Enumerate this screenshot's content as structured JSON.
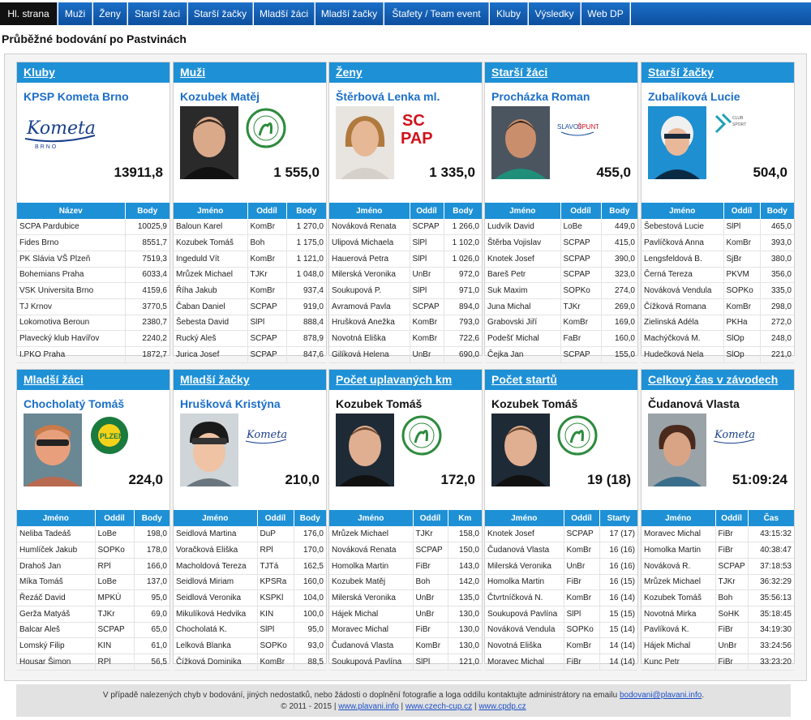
{
  "nav": {
    "items": [
      "Hl. strana",
      "Muži",
      "Ženy",
      "Starší žáci",
      "Starší žačky",
      "Mladší žáci",
      "Mladší žačky",
      "Štafety / Team event",
      "Kluby",
      "Výsledky",
      "Web DP"
    ]
  },
  "page_title": "Průběžné bodování po Pastvinách",
  "cards": [
    {
      "header": "Kluby",
      "name": "KPSP Kometa Brno",
      "score": "13911,8",
      "logo": "kometa-logo",
      "photo": "none",
      "columns": [
        "Název",
        "Body"
      ],
      "rows": [
        [
          "SCPA Pardubice",
          "10025,9"
        ],
        [
          "Fides Brno",
          "8551,7"
        ],
        [
          "PK Slávia VŠ Plzeň",
          "7519,3"
        ],
        [
          "Bohemians Praha",
          "6033,4"
        ],
        [
          "VSK Universita Brno",
          "4159,6"
        ],
        [
          "TJ Krnov",
          "3770,5"
        ],
        [
          "Lokomotiva Beroun",
          "2380,7"
        ],
        [
          "Plavecký klub Havířov",
          "2240,2"
        ],
        [
          "I.PKO Praha",
          "1872,7"
        ]
      ]
    },
    {
      "header": "Muži",
      "name": "Kozubek Matěj",
      "score": "1 555,0",
      "logo": "bohemians-logo",
      "columns": [
        "Jméno",
        "Oddíl",
        "Body"
      ],
      "rows": [
        [
          "Baloun Karel",
          "KomBr",
          "1 270,0"
        ],
        [
          "Kozubek Tomáš",
          "Boh",
          "1 175,0"
        ],
        [
          "Ingeduld Vít",
          "KomBr",
          "1 121,0"
        ],
        [
          "Mrůzek Michael",
          "TJKr",
          "1 048,0"
        ],
        [
          "Říha Jakub",
          "KomBr",
          "937,4"
        ],
        [
          "Čaban Daniel",
          "SCPAP",
          "919,0"
        ],
        [
          "Šebesta David",
          "SlPl",
          "888,4"
        ],
        [
          "Rucký Aleš",
          "SCPAP",
          "878,9"
        ],
        [
          "Jurica Josef",
          "SCPAP",
          "847,6"
        ]
      ]
    },
    {
      "header": "Ženy",
      "name": "Štěrbová Lenka ml.",
      "score": "1 335,0",
      "logo": "scpap-logo",
      "columns": [
        "Jméno",
        "Oddíl",
        "Body"
      ],
      "rows": [
        [
          "Nováková Renata",
          "SCPAP",
          "1 266,0"
        ],
        [
          "Ulipová Michaela",
          "SlPl",
          "1 102,0"
        ],
        [
          "Hauerová Petra",
          "SlPl",
          "1 026,0"
        ],
        [
          "Milerská Veronika",
          "UnBr",
          "972,0"
        ],
        [
          "Soukupová P.",
          "SlPl",
          "971,0"
        ],
        [
          "Avramová Pavla",
          "SCPAP",
          "894,0"
        ],
        [
          "Hrušková Anežka",
          "KomBr",
          "793,0"
        ],
        [
          "Novotná Eliška",
          "KomBr",
          "722,6"
        ],
        [
          "Gilíková Helena",
          "UnBr",
          "690,0"
        ]
      ]
    },
    {
      "header": "Starší žáci",
      "name": "Procházka Roman",
      "score": "455,0",
      "logo": "sumperk-logo",
      "columns": [
        "Jméno",
        "Oddíl",
        "Body"
      ],
      "rows": [
        [
          "Ludvík David",
          "LoBe",
          "449,0"
        ],
        [
          "Štěrba Vojislav",
          "SCPAP",
          "415,0"
        ],
        [
          "Knotek Josef",
          "SCPAP",
          "390,0"
        ],
        [
          "Bareš Petr",
          "SCPAP",
          "323,0"
        ],
        [
          "Suk Maxim",
          "SOPKo",
          "274,0"
        ],
        [
          "Juna Michal",
          "TJKr",
          "269,0"
        ],
        [
          "Grabovski Jiří",
          "KomBr",
          "169,0"
        ],
        [
          "Podešť Michal",
          "FaBr",
          "160,0"
        ],
        [
          "Čejka Jan",
          "SCPAP",
          "155,0"
        ]
      ]
    },
    {
      "header": "Starší žačky",
      "name": "Zubalíková Lucie",
      "score": "504,0",
      "logo": "vyskov-logo",
      "columns": [
        "Jméno",
        "Oddíl",
        "Body"
      ],
      "rows": [
        [
          "Šebestová Lucie",
          "SlPl",
          "465,0"
        ],
        [
          "Pavlíčková Anna",
          "KomBr",
          "393,0"
        ],
        [
          "Lengsfeldová B.",
          "SjBr",
          "380,0"
        ],
        [
          "Černá Tereza",
          "PKVM",
          "356,0"
        ],
        [
          "Nováková Vendula",
          "SOPKo",
          "335,0"
        ],
        [
          "Čížková Romana",
          "KomBr",
          "298,0"
        ],
        [
          "Zielinská Adéla",
          "PKHa",
          "272,0"
        ],
        [
          "Machýčková M.",
          "SlOp",
          "248,0"
        ],
        [
          "Hudečková Nela",
          "SlOp",
          "221,0"
        ]
      ]
    },
    {
      "header": "Mladší žáci",
      "name": "Chocholatý Tomáš",
      "score": "224,0",
      "logo": "plzen-logo",
      "columns": [
        "Jméno",
        "Oddíl",
        "Body"
      ],
      "rows": [
        [
          "Neliba Tadeáš",
          "LoBe",
          "198,0"
        ],
        [
          "Humlíček Jakub",
          "SOPKo",
          "178,0"
        ],
        [
          "Drahoš Jan",
          "RPl",
          "166,0"
        ],
        [
          "Míka Tomáš",
          "LoBe",
          "137,0"
        ],
        [
          "Řezáč David",
          "MPKÚ",
          "95,0"
        ],
        [
          "Gerža Matyáš",
          "TJKr",
          "69,0"
        ],
        [
          "Balcar Aleš",
          "SCPAP",
          "65,0"
        ],
        [
          "Lomský Filip",
          "KIN",
          "61,0"
        ],
        [
          "Housar Šimon",
          "RPl",
          "56,5"
        ]
      ]
    },
    {
      "header": "Mladší žačky",
      "name": "Hrušková Kristýna",
      "score": "210,0",
      "logo": "kometa-logo",
      "columns": [
        "Jméno",
        "Oddíl",
        "Body"
      ],
      "rows": [
        [
          "Seidlová Martina",
          "DuP",
          "176,0"
        ],
        [
          "Voračková Eliška",
          "RPl",
          "170,0"
        ],
        [
          "Macholdová Tereza",
          "TJTá",
          "162,5"
        ],
        [
          "Seidlová Miriam",
          "KPSRa",
          "160,0"
        ],
        [
          "Seidlová Veronika",
          "KSPKl",
          "104,0"
        ],
        [
          "Mikulíková Hedvika",
          "KIN",
          "100,0"
        ],
        [
          "Chocholatá K.",
          "SlPl",
          "95,0"
        ],
        [
          "Lelková Blanka",
          "SOPKo",
          "93,0"
        ],
        [
          "Čížková Dominika",
          "KomBr",
          "88,5"
        ]
      ]
    },
    {
      "header": "Počet uplavaných km",
      "name": "Kozubek Tomáš",
      "score": "172,0",
      "logo": "bohemians-logo",
      "columns": [
        "Jméno",
        "Oddíl",
        "Km"
      ],
      "rows": [
        [
          "Mrůzek Michael",
          "TJKr",
          "158,0"
        ],
        [
          "Nováková Renata",
          "SCPAP",
          "150,0"
        ],
        [
          "Homolka Martin",
          "FiBr",
          "143,0"
        ],
        [
          "Kozubek Matěj",
          "Boh",
          "142,0"
        ],
        [
          "Milerská Veronika",
          "UnBr",
          "135,0"
        ],
        [
          "Hájek Michal",
          "UnBr",
          "130,0"
        ],
        [
          "Moravec Michal",
          "FiBr",
          "130,0"
        ],
        [
          "Čudanová Vlasta",
          "KomBr",
          "130,0"
        ],
        [
          "Soukupová Pavlína",
          "SlPl",
          "121,0"
        ]
      ]
    },
    {
      "header": "Počet startů",
      "name": "Kozubek Tomáš",
      "score": "19 (18)",
      "logo": "bohemians-logo",
      "columns": [
        "Jméno",
        "Oddíl",
        "Starty"
      ],
      "rows": [
        [
          "Knotek Josef",
          "SCPAP",
          "17 (17)"
        ],
        [
          "Čudanová Vlasta",
          "KomBr",
          "16 (16)"
        ],
        [
          "Milerská Veronika",
          "UnBr",
          "16 (16)"
        ],
        [
          "Homolka Martin",
          "FiBr",
          "16 (15)"
        ],
        [
          "Čtvrtníčková N.",
          "KomBr",
          "16 (14)"
        ],
        [
          "Soukupová Pavlína",
          "SlPl",
          "15 (15)"
        ],
        [
          "Nováková Vendula",
          "SOPKo",
          "15 (14)"
        ],
        [
          "Novotná Eliška",
          "KomBr",
          "14 (14)"
        ],
        [
          "Moravec Michal",
          "FiBr",
          "14 (14)"
        ]
      ]
    },
    {
      "header": "Celkový čas v závodech",
      "name": "Čudanová Vlasta",
      "score": "51:09:24",
      "logo": "kometa-logo",
      "columns": [
        "Jméno",
        "Oddíl",
        "Čas"
      ],
      "rows": [
        [
          "Moravec Michal",
          "FiBr",
          "43:15:32"
        ],
        [
          "Homolka Martin",
          "FiBr",
          "40:38:47"
        ],
        [
          "Nováková R.",
          "SCPAP",
          "37:18:53"
        ],
        [
          "Mrůzek Michael",
          "TJKr",
          "36:32:29"
        ],
        [
          "Kozubek Tomáš",
          "Boh",
          "35:56:13"
        ],
        [
          "Novotná Mirka",
          "SoHK",
          "35:18:45"
        ],
        [
          "Pavlíková K.",
          "FiBr",
          "34:19:30"
        ],
        [
          "Hájek Michal",
          "UnBr",
          "33:24:56"
        ],
        [
          "Kunc Petr",
          "FiBr",
          "33:23:20"
        ]
      ]
    }
  ],
  "footer": {
    "line1": "V případě nalezených chyb v bodování, jiných nedostatků, nebo žádosti o doplnění fotografie a loga oddílu kontaktujte administrátory na emailu",
    "email": "bodovani@plavani.info",
    "email_suffix": ".",
    "copyright": "© 2011 - 2015 |",
    "link1": "www.plavani.info",
    "sep1": "|",
    "link2": "www.czech-cup.cz",
    "sep2": "|",
    "link3": "www.cpdp.cz"
  },
  "colors": {
    "nav_blue": "#1b6fc8",
    "active_tab": "#111111",
    "header_blue": "#1e90d6"
  }
}
